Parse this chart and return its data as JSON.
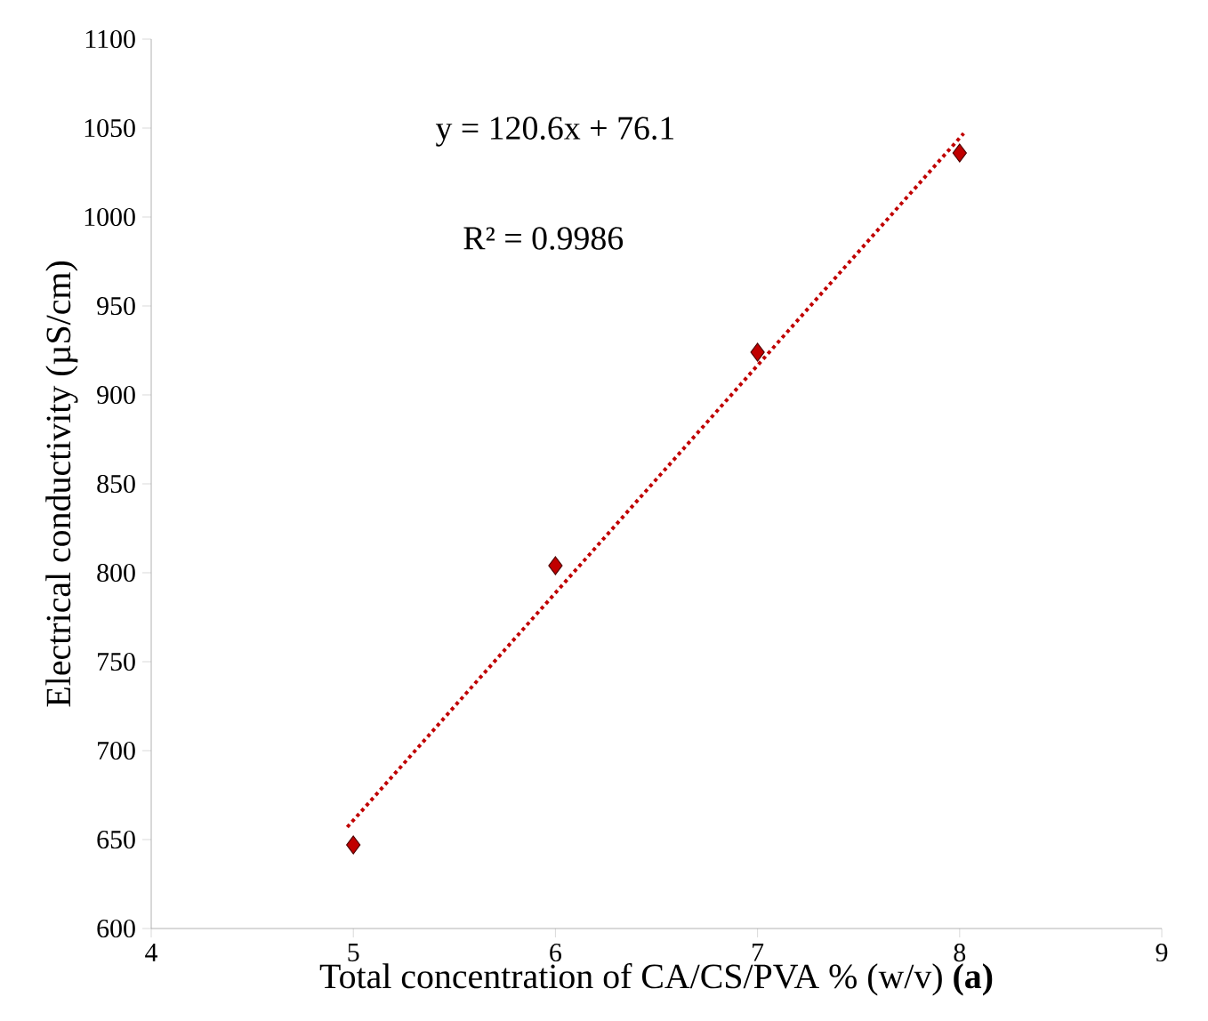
{
  "chart_data": {
    "type": "scatter",
    "xlabel": "Total concentration of CA/CS/PVA  %  (w/v) **(a)**",
    "ylabel": "Electrical conductivity (µS/cm)",
    "annotations": [
      "y = 120.6x + 76.1",
      "R² = 0.9986"
    ],
    "series": [
      {
        "type": "line",
        "x": [
          4.97,
          8.02
        ],
        "values": [
          657,
          1047
        ],
        "color": "#c00000",
        "line_style": "dotted",
        "marker": "none"
      },
      {
        "x": [
          5,
          6,
          7,
          8
        ],
        "values": [
          647,
          804,
          924,
          1036
        ],
        "color": "#c00000",
        "marker": "diamond"
      }
    ],
    "xlim": [
      4,
      9
    ],
    "xticks": [
      4,
      5,
      6,
      7,
      8,
      9
    ],
    "ylim": [
      600,
      1100
    ],
    "yticks": [
      600,
      650,
      700,
      750,
      800,
      850,
      900,
      950,
      1000,
      1050,
      1100
    ],
    "grid": false
  }
}
